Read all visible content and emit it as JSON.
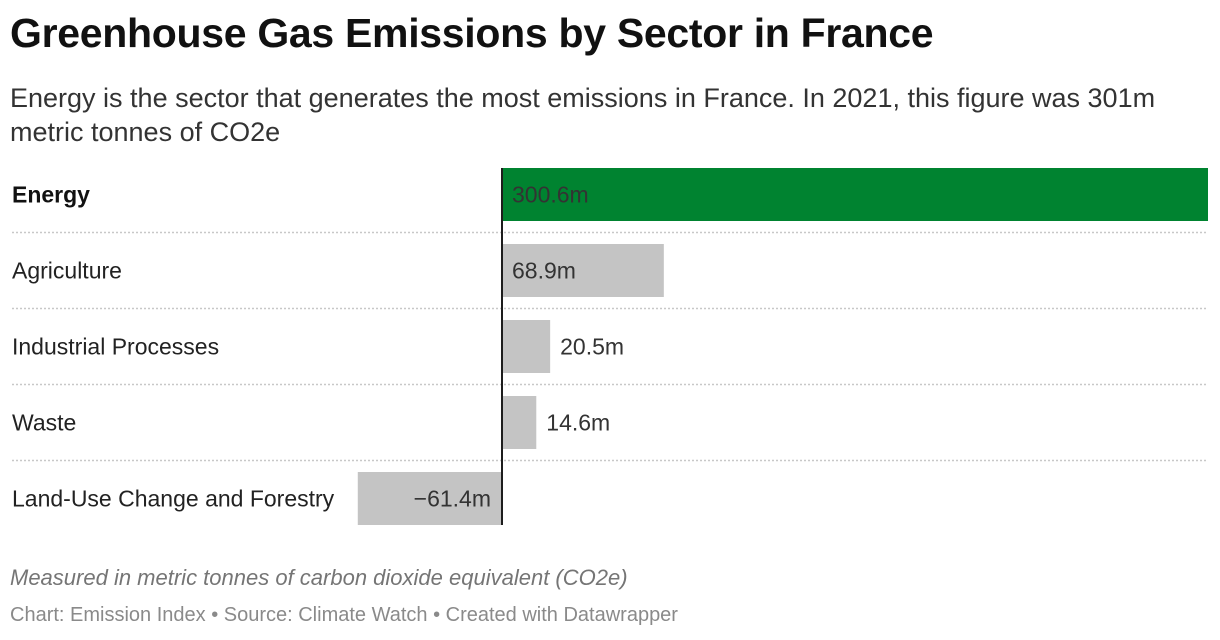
{
  "title": "Greenhouse Gas Emissions by Sector in France",
  "subtitle": "Energy is the sector that generates the most emissions in France. In 2021, this figure was 301m metric tonnes of CO2e",
  "notes": "Measured in metric tonnes of carbon dioxide equivalent (CO2e)",
  "footer": "Chart: Emission Index • Source: Climate Watch • Created with Datawrapper",
  "colors": {
    "highlight": "#008330",
    "default": "#c4c4c4",
    "axis": "#1d1d1d",
    "gridline": "#c8c8c8"
  },
  "chart_data": {
    "type": "bar",
    "orientation": "horizontal",
    "categories": [
      "Energy",
      "Agriculture",
      "Industrial Processes",
      "Waste",
      "Land-Use Change and Forestry"
    ],
    "values": [
      300.6,
      68.9,
      20.5,
      14.6,
      -61.4
    ],
    "value_labels": [
      "300.6m",
      "68.9m",
      "20.5m",
      "14.6m",
      "−61.4m"
    ],
    "highlighted": [
      "Energy"
    ],
    "xlim": [
      -61.4,
      300.6
    ]
  }
}
